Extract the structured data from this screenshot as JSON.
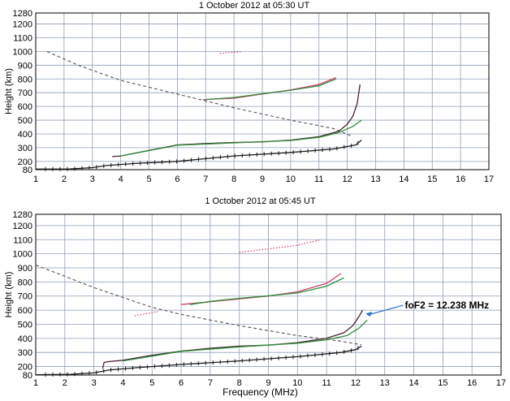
{
  "chart_data": [
    {
      "type": "line",
      "title": "1 October 2012 at 05:30 UT",
      "xlabel": "",
      "ylabel": "Height (km)",
      "xlim": [
        1,
        17
      ],
      "ylim": [
        80,
        1280
      ],
      "x_ticks": [
        "1",
        "2",
        "3",
        "4",
        "5",
        "6",
        "7",
        "8",
        "9",
        "10",
        "11",
        "12",
        "13",
        "14",
        "15",
        "16",
        "17"
      ],
      "y_ticks": [
        "80",
        "200",
        "300",
        "400",
        "500",
        "600",
        "700",
        "800",
        "900",
        "1000",
        "1100",
        "1200",
        "1280"
      ],
      "grid": true,
      "series": [
        {
          "color": "#555555",
          "style": "dashed",
          "x": [
            1.4,
            2.5,
            4,
            6,
            8,
            10,
            11.5,
            12.2
          ],
          "y": [
            1000,
            900,
            790,
            690,
            590,
            500,
            440,
            380
          ]
        },
        {
          "color": "#1a1a1a",
          "style": "solid-ticks",
          "x": [
            1.0,
            2.2,
            3.0,
            3.5,
            4.5,
            6,
            8,
            10,
            11.5,
            12.3,
            12.5
          ],
          "y": [
            88,
            90,
            110,
            140,
            170,
            200,
            240,
            265,
            290,
            320,
            355
          ]
        },
        {
          "color": "#4a2030",
          "style": "solid",
          "x": [
            3.7,
            4,
            5,
            6,
            7,
            8,
            9,
            10,
            11,
            11.7,
            12.0,
            12.2,
            12.35,
            12.45
          ],
          "y": [
            235,
            240,
            280,
            320,
            330,
            338,
            342,
            355,
            380,
            420,
            470,
            530,
            620,
            760
          ]
        },
        {
          "color": "#2e8b3a",
          "style": "solid",
          "x": [
            4,
            6,
            8,
            10,
            11,
            11.7,
            12.2,
            12.5
          ],
          "y": [
            240,
            318,
            335,
            352,
            375,
            410,
            455,
            500
          ]
        },
        {
          "color": "#d04070",
          "style": "solid",
          "x": [
            6.9,
            8,
            9,
            10,
            11,
            11.6
          ],
          "y": [
            650,
            660,
            690,
            720,
            760,
            810
          ]
        },
        {
          "color": "#2e8b3a",
          "style": "solid",
          "x": [
            7,
            8,
            9,
            10,
            11,
            11.6
          ],
          "y": [
            650,
            665,
            692,
            718,
            750,
            800
          ]
        },
        {
          "color": "#d04070",
          "style": "dotted",
          "x": [
            7.5,
            8.0,
            8.3
          ],
          "y": [
            985,
            995,
            1000
          ]
        }
      ]
    },
    {
      "type": "line",
      "title": "1 October 2012 at 05:45 UT",
      "xlabel": "Frequency (MHz)",
      "ylabel": "Height (km)",
      "xlim": [
        1,
        17
      ],
      "ylim": [
        80,
        1280
      ],
      "x_ticks": [
        "1",
        "2",
        "3",
        "4",
        "5",
        "6",
        "7",
        "8",
        "9",
        "10",
        "11",
        "12",
        "13",
        "14",
        "15",
        "16",
        "17"
      ],
      "y_ticks": [
        "80",
        "200",
        "300",
        "400",
        "500",
        "600",
        "700",
        "800",
        "900",
        "1000",
        "1100",
        "1200",
        "1280"
      ],
      "grid": true,
      "series": [
        {
          "color": "#555555",
          "style": "dashed",
          "x": [
            1.0,
            2,
            3,
            4,
            5,
            6,
            8,
            10,
            11.5,
            12.2
          ],
          "y": [
            920,
            840,
            760,
            690,
            620,
            570,
            490,
            420,
            380,
            355
          ]
        },
        {
          "color": "#1a1a1a",
          "style": "solid-ticks",
          "x": [
            1.0,
            2.2,
            3.0,
            3.5,
            4.5,
            6,
            8,
            10,
            11.5,
            12.0,
            12.2
          ],
          "y": [
            85,
            90,
            110,
            150,
            185,
            215,
            240,
            270,
            300,
            320,
            345
          ]
        },
        {
          "color": "#4a2030",
          "style": "solid",
          "x": [
            3.3,
            3.35,
            3.5,
            4,
            5,
            6,
            7,
            8,
            9,
            10,
            11,
            11.6,
            11.9,
            12.1,
            12.238
          ],
          "y": [
            170,
            230,
            235,
            245,
            280,
            310,
            330,
            345,
            352,
            370,
            400,
            440,
            490,
            550,
            600
          ]
        },
        {
          "color": "#2e8b3a",
          "style": "solid",
          "x": [
            4,
            6,
            8,
            10,
            11,
            11.7,
            12.1,
            12.4
          ],
          "y": [
            240,
            308,
            340,
            365,
            390,
            420,
            470,
            530
          ]
        },
        {
          "color": "#d04070",
          "style": "solid",
          "x": [
            6.0,
            7,
            8,
            9,
            10,
            11,
            11.5
          ],
          "y": [
            640,
            660,
            680,
            700,
            730,
            790,
            860
          ]
        },
        {
          "color": "#2e8b3a",
          "style": "solid",
          "x": [
            6.3,
            7,
            8,
            9,
            10,
            11,
            11.6
          ],
          "y": [
            640,
            662,
            684,
            702,
            722,
            770,
            830
          ]
        },
        {
          "color": "#d04070",
          "style": "dotted",
          "x": [
            8.0,
            9,
            10,
            10.8
          ],
          "y": [
            1010,
            1035,
            1060,
            1100
          ]
        },
        {
          "color": "#d04070",
          "style": "dotted",
          "x": [
            4.4,
            4.8,
            5.2
          ],
          "y": [
            560,
            575,
            590
          ]
        }
      ],
      "annotations": [
        {
          "text": "foF2 = 12.238 MHz",
          "x": 12.238,
          "y": 600
        }
      ]
    }
  ]
}
